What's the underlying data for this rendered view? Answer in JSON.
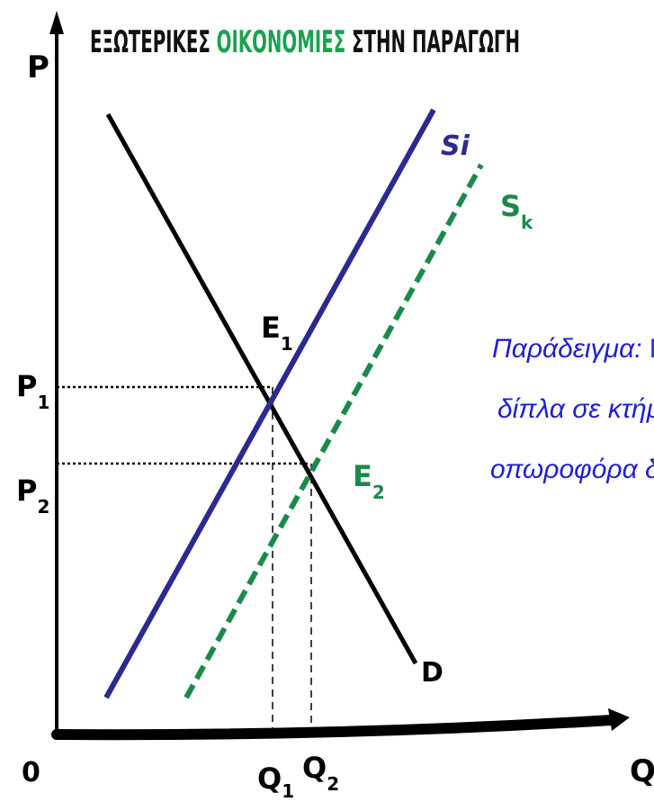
{
  "title": {
    "part1": "ΕΞΩΤΕΡΙΚΕΣ ",
    "part2": "ΟΙΚΟΝΟΜΙΕΣ",
    "part3": " ΣΤΗΝ ΠΑΡΑΓΩΓΗ"
  },
  "axes": {
    "y_label": "P",
    "x_label": "Q",
    "origin_label": "0"
  },
  "curves": {
    "supply_private": {
      "label": "Si",
      "color": "#2a2a8f"
    },
    "supply_social": {
      "label_main": "S",
      "label_sub": "k",
      "color": "#1a8a4a"
    },
    "demand": {
      "label": "D",
      "color": "#000000"
    }
  },
  "points": {
    "e1": {
      "main": "E",
      "sub": "1"
    },
    "e2": {
      "main": "E",
      "sub": "2"
    }
  },
  "ticks": {
    "p1": {
      "main": "P",
      "sub": "1"
    },
    "p2": {
      "main": "P",
      "sub": "2"
    },
    "q1": {
      "main": "Q",
      "sub": "1"
    },
    "q2": {
      "main": "Q",
      "sub": "2"
    }
  },
  "example": {
    "line1_italic": "Παράδειγμα:",
    "line1_rest": " Μελισ",
    "line2": "δίπλα σε κτήμα με",
    "line3": "οπωροφόρα δέντρα",
    "color": "#1f1fd0"
  },
  "colors": {
    "title_dark": "#111111",
    "title_green": "#19a24f",
    "axis": "#000000"
  }
}
